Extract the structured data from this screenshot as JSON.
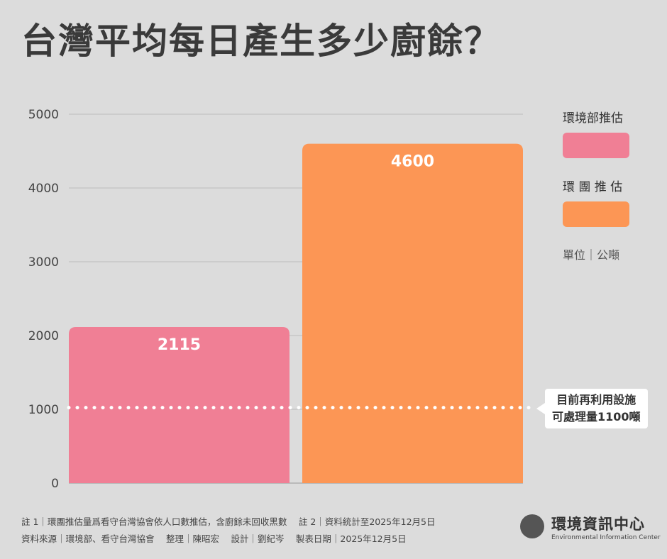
{
  "title": "台灣平均每日產生多少廚餘？",
  "chart_data": {
    "type": "bar",
    "categories": [
      "環境部推估",
      "環團推估"
    ],
    "values": [
      2115,
      4600
    ],
    "ylim": [
      0,
      5000
    ],
    "yticks": [
      "0",
      "1000",
      "2000",
      "3000",
      "4000",
      "5000"
    ],
    "grid": true,
    "legend_placement": "right",
    "colors": [
      "#f07f95",
      "#fc9655"
    ],
    "reference_line": {
      "value": 1100,
      "label_line1": "目前再利用設施",
      "label_line2": "可處理量1100噸"
    }
  },
  "legend": {
    "items": [
      {
        "label": "環境部推估",
        "color": "#f07f95"
      },
      {
        "label": "環 團 推 估",
        "color": "#fc9655"
      }
    ],
    "unit": "單位｜公噸"
  },
  "notes": {
    "line1": "註 1｜環團推估量爲看守台灣協會依人口數推估，含廚餘未回收黑數　 註 2｜資料統計至2025年12月5日",
    "line2": "資料來源｜環境部、看守台灣協會　 整理｜陳昭宏　 設計｜劉紀岑　 製表日期｜2025年12月5日"
  },
  "logo": {
    "name": "環境資訊中心",
    "en": "Environmental Information Center"
  }
}
